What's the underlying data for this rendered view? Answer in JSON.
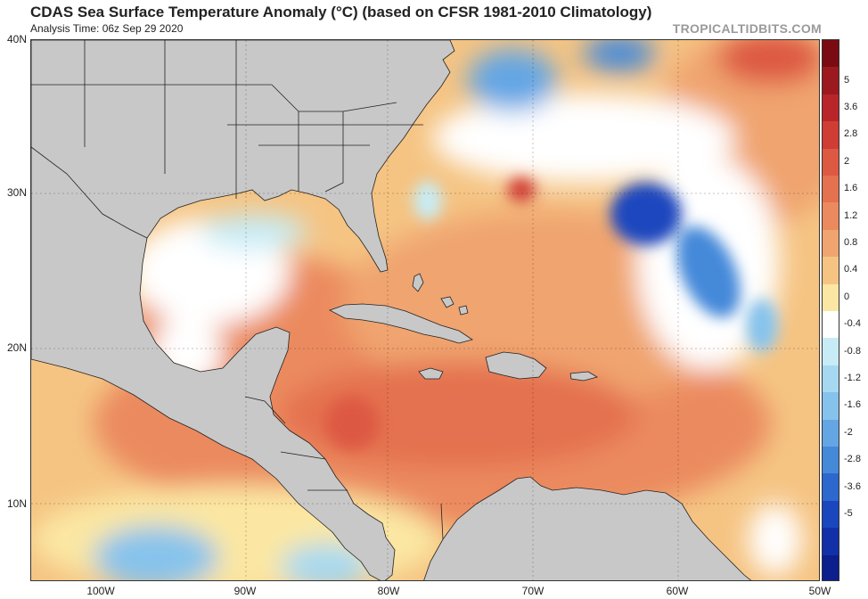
{
  "header": {
    "title": "CDAS Sea Surface Temperature Anomaly (°C) (based on CFSR 1981-2010 Climatology)",
    "analysis_time": "Analysis Time: 06z Sep 29 2020",
    "source": "TROPICALTIDBITS.COM"
  },
  "map": {
    "region": "Western Atlantic, Gulf of Mexico and Caribbean Sea",
    "lat_labels": [
      "40N",
      "30N",
      "20N",
      "10N"
    ],
    "lon_labels": [
      "100W",
      "90W",
      "80W",
      "70W",
      "60W",
      "50W"
    ],
    "land_color": "#c8c8c8"
  },
  "colorbar": {
    "labels": [
      "5",
      "3.6",
      "2.8",
      "2",
      "1.6",
      "1.2",
      "0.8",
      "0.4",
      "0",
      "-0.4",
      "-0.8",
      "-1.2",
      "-1.6",
      "-2",
      "-2.8",
      "-3.6",
      "-5"
    ],
    "colors": [
      "#7a0b12",
      "#9c1a1f",
      "#b8262a",
      "#cf3d35",
      "#dd5942",
      "#e4714f",
      "#eb8a5e",
      "#f0a46f",
      "#f5c483",
      "#fbe7a3",
      "#ffffff",
      "#c7ecf6",
      "#a6d9f1",
      "#86c3ec",
      "#64a6e4",
      "#4589d9",
      "#2c68cd",
      "#1b47be",
      "#1230a8",
      "#0c1f8c"
    ]
  }
}
